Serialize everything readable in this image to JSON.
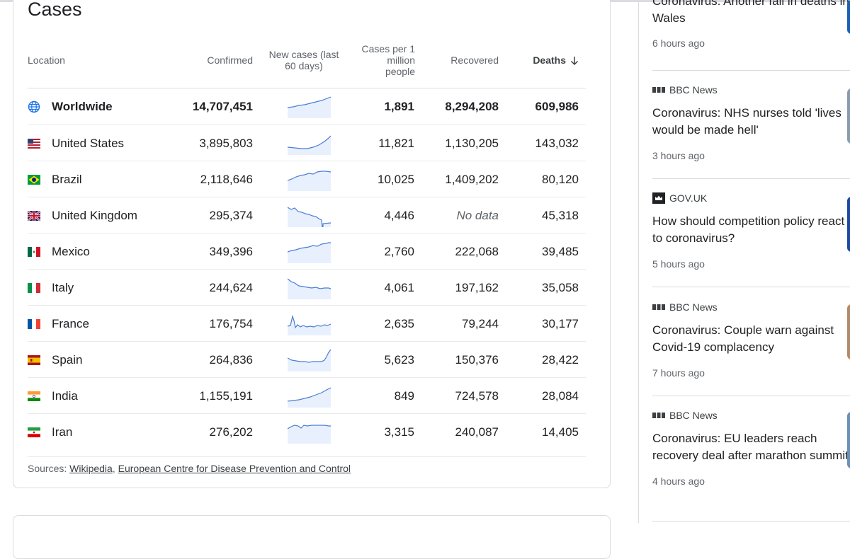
{
  "card": {
    "title": "Cases",
    "headers": {
      "location": "Location",
      "confirmed": "Confirmed",
      "new_cases": "New cases (last 60 days)",
      "per_million": "Cases per 1 million people",
      "recovered": "Recovered",
      "deaths": "Deaths"
    },
    "rows": [
      {
        "location": "Worldwide",
        "confirmed": "14,707,451",
        "per_million": "1,891",
        "recovered": "8,294,208",
        "deaths": "609,986"
      },
      {
        "location": "United States",
        "confirmed": "3,895,803",
        "per_million": "11,821",
        "recovered": "1,130,205",
        "deaths": "143,032"
      },
      {
        "location": "Brazil",
        "confirmed": "2,118,646",
        "per_million": "10,025",
        "recovered": "1,409,202",
        "deaths": "80,120"
      },
      {
        "location": "United Kingdom",
        "confirmed": "295,374",
        "per_million": "4,446",
        "recovered": "No data",
        "deaths": "45,318"
      },
      {
        "location": "Mexico",
        "confirmed": "349,396",
        "per_million": "2,760",
        "recovered": "222,068",
        "deaths": "39,485"
      },
      {
        "location": "Italy",
        "confirmed": "244,624",
        "per_million": "4,061",
        "recovered": "197,162",
        "deaths": "35,058"
      },
      {
        "location": "France",
        "confirmed": "176,754",
        "per_million": "2,635",
        "recovered": "79,244",
        "deaths": "30,177"
      },
      {
        "location": "Spain",
        "confirmed": "264,836",
        "per_million": "5,623",
        "recovered": "150,376",
        "deaths": "28,422"
      },
      {
        "location": "India",
        "confirmed": "1,155,191",
        "per_million": "849",
        "recovered": "724,578",
        "deaths": "28,084"
      },
      {
        "location": "Iran",
        "confirmed": "276,202",
        "per_million": "3,315",
        "recovered": "240,087",
        "deaths": "14,405"
      }
    ],
    "sources_label": "Sources:",
    "sources": [
      "Wikipedia",
      "European Centre for Disease Prevention and Control"
    ]
  },
  "news": [
    {
      "source": "",
      "headline": "Coronavirus: Another fall in deaths in Wales",
      "time": "6 hours ago"
    },
    {
      "source": "BBC News",
      "headline": "Coronavirus: NHS nurses told 'lives would be made hell'",
      "time": "3 hours ago"
    },
    {
      "source": "GOV.UK",
      "headline": "How should competition policy react to coronavirus?",
      "time": "5 hours ago"
    },
    {
      "source": "BBC News",
      "headline": "Coronavirus: Couple warn against Covid-19 complacency",
      "time": "7 hours ago"
    },
    {
      "source": "BBC News",
      "headline": "Coronavirus: EU leaders reach recovery deal after marathon summit",
      "time": "4 hours ago"
    }
  ],
  "colors": {
    "sparkline": "#4a7dd6",
    "sparkfill": "#e8f0fe",
    "border": "#dadce0"
  }
}
